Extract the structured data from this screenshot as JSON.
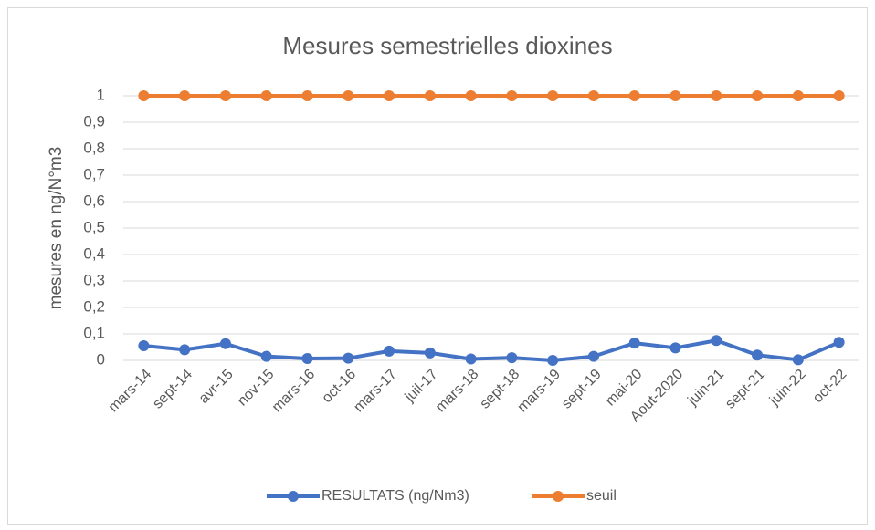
{
  "chart_data": {
    "type": "line",
    "title": "Mesures semestrielles dioxines",
    "y_label": "mesures en ng/N°m3",
    "categories": [
      "mars-14",
      "sept-14",
      "avr-15",
      "nov-15",
      "mars-16",
      "oct-16",
      "mars-17",
      "juil-17",
      "mars-18",
      "sept-18",
      "mars-19",
      "sept-19",
      "mai-20",
      "Aout-2020",
      "juin-21",
      "sept-21",
      "juin-22",
      "oct-22"
    ],
    "series": [
      {
        "name": "RESULTATS (ng/Nm3)",
        "color": "#4472c4",
        "values": [
          0.055,
          0.04,
          0.063,
          0.015,
          0.007,
          0.008,
          0.035,
          0.028,
          0.005,
          0.01,
          0,
          0.015,
          0.065,
          0.047,
          0.075,
          0.02,
          0.002,
          0.068
        ]
      },
      {
        "name": "seuil",
        "color": "#ed7d31",
        "values": [
          1,
          1,
          1,
          1,
          1,
          1,
          1,
          1,
          1,
          1,
          1,
          1,
          1,
          1,
          1,
          1,
          1,
          1
        ]
      }
    ],
    "ylim": [
      0,
      1
    ],
    "yticks": [
      0,
      {
        "value": 0.1,
        "label": "0,1"
      },
      {
        "value": 0.2,
        "label": "0,2"
      },
      {
        "value": 0.3,
        "label": "0,3"
      },
      {
        "value": 0.4,
        "label": "0,4"
      },
      {
        "value": 0.5,
        "label": "0,5"
      },
      {
        "value": 0.6,
        "label": "0,6"
      },
      {
        "value": 0.7,
        "label": "0,7"
      },
      {
        "value": 0.8,
        "label": "0,8"
      },
      {
        "value": 0.9,
        "label": "0,9"
      },
      1
    ],
    "grid": true,
    "legend": "bottom"
  }
}
